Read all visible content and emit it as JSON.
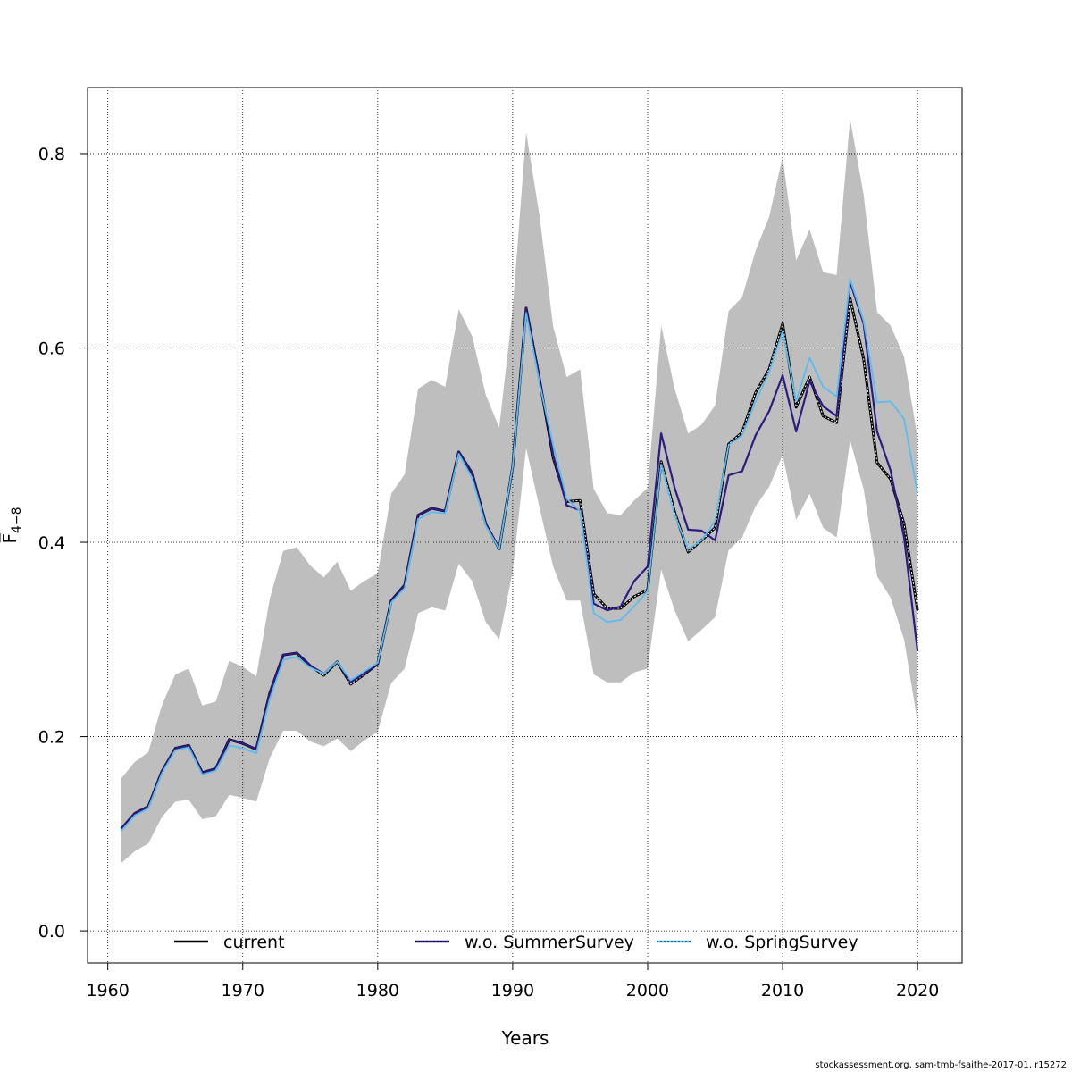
{
  "credit": "stockassessment.org, sam-tmb-fsaithe-2017-01, r15272",
  "chart_data": {
    "type": "line",
    "title": "",
    "xlabel": "Years",
    "ylabel": "F̅4-8",
    "ylabel_main": "F̅",
    "ylabel_sub": "4−8",
    "xlim": [
      1958.5,
      2023.3
    ],
    "ylim": [
      -0.033,
      0.868
    ],
    "xticks": [
      1960,
      1970,
      1980,
      1990,
      2000,
      2010,
      2020
    ],
    "xtick_labels": [
      "1960",
      "1970",
      "1980",
      "1990",
      "2000",
      "2010",
      "2020"
    ],
    "yticks": [
      0.0,
      0.2,
      0.4,
      0.6,
      0.8
    ],
    "ytick_labels": [
      "0.0",
      "0.2",
      "0.4",
      "0.6",
      "0.8"
    ],
    "grid": true,
    "legend_position": "bottom",
    "x": [
      1961,
      1962,
      1963,
      1964,
      1965,
      1966,
      1967,
      1968,
      1969,
      1970,
      1971,
      1972,
      1973,
      1974,
      1975,
      1976,
      1977,
      1978,
      1979,
      1980,
      1981,
      1982,
      1983,
      1984,
      1985,
      1986,
      1987,
      1988,
      1989,
      1990,
      1991,
      1992,
      1993,
      1994,
      1995,
      1996,
      1997,
      1998,
      1999,
      2000,
      2001,
      2002,
      2003,
      2004,
      2005,
      2006,
      2007,
      2008,
      2009,
      2010,
      2011,
      2012,
      2013,
      2014,
      2015,
      2016,
      2017,
      2018,
      2019,
      2020
    ],
    "band": {
      "color": "#bebebe",
      "lower": [
        0.07,
        0.082,
        0.09,
        0.117,
        0.133,
        0.135,
        0.115,
        0.118,
        0.14,
        0.137,
        0.133,
        0.178,
        0.206,
        0.206,
        0.195,
        0.19,
        0.198,
        0.185,
        0.196,
        0.205,
        0.255,
        0.27,
        0.327,
        0.333,
        0.33,
        0.378,
        0.36,
        0.318,
        0.3,
        0.37,
        0.497,
        0.435,
        0.375,
        0.34,
        0.34,
        0.264,
        0.256,
        0.256,
        0.266,
        0.27,
        0.372,
        0.33,
        0.298,
        0.31,
        0.323,
        0.392,
        0.405,
        0.437,
        0.457,
        0.49,
        0.423,
        0.45,
        0.415,
        0.405,
        0.505,
        0.455,
        0.365,
        0.343,
        0.3,
        0.215
      ],
      "upper": [
        0.157,
        0.174,
        0.184,
        0.232,
        0.264,
        0.27,
        0.232,
        0.236,
        0.278,
        0.272,
        0.262,
        0.342,
        0.391,
        0.395,
        0.376,
        0.364,
        0.38,
        0.35,
        0.36,
        0.368,
        0.45,
        0.47,
        0.558,
        0.567,
        0.56,
        0.64,
        0.612,
        0.552,
        0.518,
        0.64,
        0.822,
        0.735,
        0.622,
        0.57,
        0.578,
        0.455,
        0.43,
        0.428,
        0.443,
        0.456,
        0.623,
        0.558,
        0.512,
        0.521,
        0.541,
        0.638,
        0.652,
        0.7,
        0.735,
        0.797,
        0.69,
        0.722,
        0.678,
        0.675,
        0.836,
        0.758,
        0.637,
        0.623,
        0.591,
        0.508
      ]
    },
    "series": [
      {
        "name": "current",
        "color": "#000000",
        "values": [
          0.105,
          0.121,
          0.128,
          0.164,
          0.188,
          0.191,
          0.163,
          0.167,
          0.197,
          0.193,
          0.187,
          0.245,
          0.284,
          0.286,
          0.273,
          0.263,
          0.277,
          0.254,
          0.264,
          0.275,
          0.34,
          0.356,
          0.428,
          0.435,
          0.432,
          0.493,
          0.471,
          0.419,
          0.393,
          0.478,
          0.641,
          0.567,
          0.487,
          0.442,
          0.443,
          0.347,
          0.332,
          0.332,
          0.344,
          0.351,
          0.483,
          0.431,
          0.39,
          0.402,
          0.415,
          0.501,
          0.513,
          0.554,
          0.578,
          0.625,
          0.539,
          0.57,
          0.53,
          0.523,
          0.651,
          0.589,
          0.482,
          0.465,
          0.419,
          0.33
        ]
      },
      {
        "name": "w.o. SummerSurvey",
        "color": "#2d1b82",
        "values": [
          0.105,
          0.121,
          0.128,
          0.164,
          0.188,
          0.191,
          0.163,
          0.167,
          0.197,
          0.193,
          0.187,
          0.245,
          0.284,
          0.286,
          0.273,
          0.265,
          0.277,
          0.256,
          0.265,
          0.275,
          0.34,
          0.356,
          0.428,
          0.435,
          0.432,
          0.493,
          0.471,
          0.419,
          0.393,
          0.478,
          0.641,
          0.567,
          0.49,
          0.438,
          0.433,
          0.337,
          0.33,
          0.334,
          0.36,
          0.375,
          0.512,
          0.456,
          0.413,
          0.412,
          0.402,
          0.469,
          0.473,
          0.51,
          0.535,
          0.572,
          0.514,
          0.566,
          0.54,
          0.53,
          0.668,
          0.625,
          0.514,
          0.474,
          0.405,
          0.288
        ]
      },
      {
        "name": "w.o. SpringSurvey",
        "color": "#5bbcf0",
        "values": [
          0.103,
          0.119,
          0.126,
          0.162,
          0.186,
          0.189,
          0.161,
          0.165,
          0.191,
          0.188,
          0.183,
          0.239,
          0.279,
          0.282,
          0.271,
          0.265,
          0.277,
          0.258,
          0.267,
          0.276,
          0.338,
          0.353,
          0.424,
          0.431,
          0.43,
          0.491,
          0.466,
          0.417,
          0.393,
          0.478,
          0.636,
          0.563,
          0.5,
          0.445,
          0.432,
          0.327,
          0.318,
          0.32,
          0.334,
          0.35,
          0.48,
          0.428,
          0.393,
          0.402,
          0.422,
          0.5,
          0.51,
          0.545,
          0.575,
          0.617,
          0.545,
          0.59,
          0.56,
          0.55,
          0.671,
          0.628,
          0.544,
          0.545,
          0.527,
          0.451
        ]
      }
    ]
  }
}
